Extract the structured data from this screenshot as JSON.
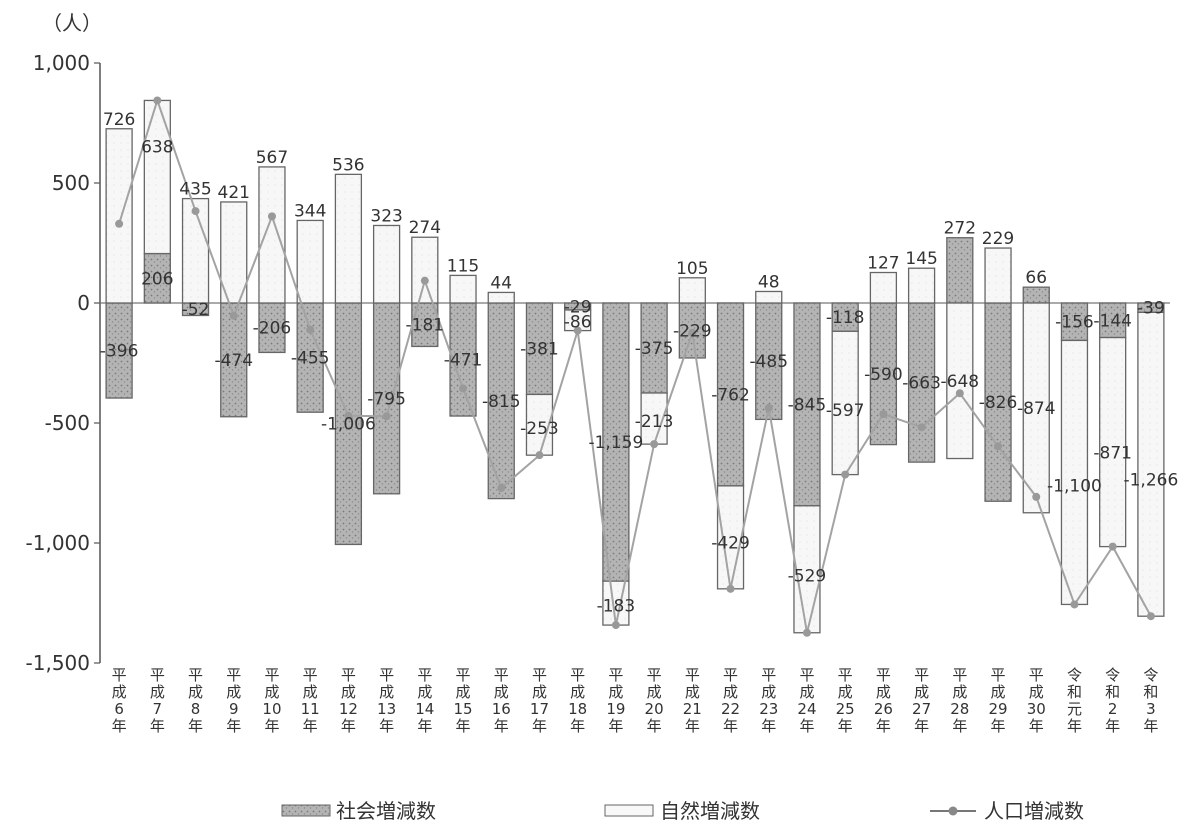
{
  "chart_data": {
    "type": "bar",
    "unit_label": "（人）",
    "ylim": [
      -1500,
      1000
    ],
    "yticks": [
      "1,000",
      "500",
      "0",
      "-500",
      "-1,000",
      "-1,500"
    ],
    "ytick_values": [
      1000,
      500,
      0,
      -500,
      -1000,
      -1500
    ],
    "categories": [
      "平成6年",
      "平成7年",
      "平成8年",
      "平成9年",
      "平成10年",
      "平成11年",
      "平成12年",
      "平成13年",
      "平成14年",
      "平成15年",
      "平成16年",
      "平成17年",
      "平成18年",
      "平成19年",
      "平成20年",
      "平成21年",
      "平成22年",
      "平成23年",
      "平成24年",
      "平成25年",
      "平成26年",
      "平成27年",
      "平成28年",
      "平成29年",
      "平成30年",
      "令和元年",
      "令和2年",
      "令和3年"
    ],
    "series": [
      {
        "name": "社会増減数",
        "values": [
          -396,
          206,
          -52,
          -474,
          -206,
          -455,
          -1006,
          -795,
          -181,
          -471,
          -815,
          -381,
          -29,
          -1159,
          -375,
          -229,
          -762,
          -485,
          -845,
          -118,
          -590,
          -663,
          272,
          -826,
          66,
          -156,
          -144,
          -39
        ]
      },
      {
        "name": "自然増減数",
        "values": [
          726,
          638,
          435,
          421,
          567,
          344,
          536,
          323,
          274,
          115,
          44,
          -253,
          -86,
          -183,
          -213,
          105,
          -429,
          48,
          -529,
          -597,
          127,
          145,
          -648,
          229,
          -874,
          -1100,
          -871,
          -1266
        ]
      },
      {
        "name": "人口増減数",
        "values": [
          330,
          844,
          383,
          -53,
          361,
          -111,
          -470,
          -472,
          93,
          -356,
          -771,
          -634,
          -115,
          -1342,
          -588,
          -124,
          -1191,
          -437,
          -1374,
          -715,
          -463,
          -518,
          -376,
          -597,
          -808,
          -1256,
          -1015,
          -1305
        ]
      }
    ],
    "legend": [
      "社会増減数",
      "自然増減数",
      "人口増減数"
    ],
    "legend_position": "bottom",
    "colors": {
      "social": "#a8a8a8",
      "natural": "#f6f6f6",
      "line": "#a3a3a3"
    }
  }
}
